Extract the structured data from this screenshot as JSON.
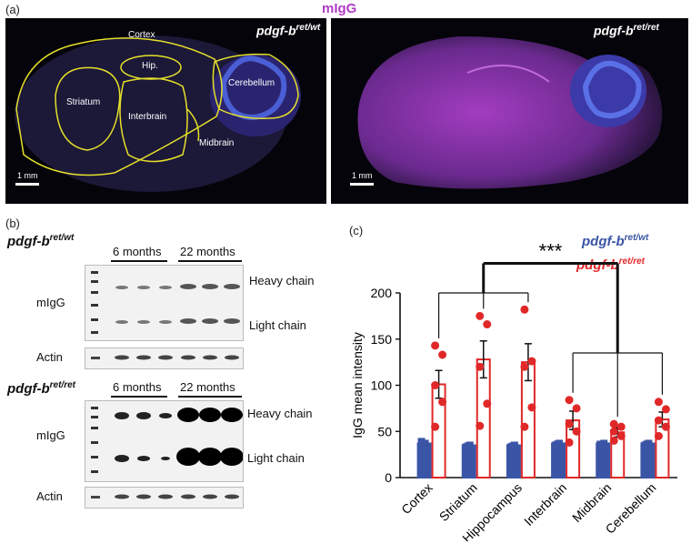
{
  "panels": {
    "a": "(a)",
    "b": "(b)",
    "c": "(c)"
  },
  "top_title": "mIgG",
  "micro_left": {
    "genotype_base": "pdgf-b",
    "genotype_sup": "ret/wt",
    "regions": [
      "Cortex",
      "Hip.",
      "Striatum",
      "Cerebellum",
      "Interbrain",
      "Midbrain"
    ],
    "scale": "1 mm"
  },
  "micro_right": {
    "genotype_base": "pdgf-b",
    "genotype_sup": "ret/ret",
    "scale": "1 mm"
  },
  "blots": [
    {
      "genotype_base": "pdgf-b",
      "genotype_sup": "ret/wt",
      "age1": "6 months",
      "age2": "22 months",
      "antibody": "mIgG",
      "heavy": "Heavy chain",
      "light": "Light chain",
      "actin": "Actin"
    },
    {
      "genotype_base": "pdgf-b",
      "genotype_sup": "ret/ret",
      "age1": "6 months",
      "age2": "22 months",
      "antibody": "mIgG",
      "heavy": "Heavy chain",
      "light": "Light chain",
      "actin": "Actin"
    }
  ],
  "chart_data": {
    "type": "bar",
    "categories": [
      "Cortex",
      "Striatum",
      "Hippocampus",
      "Interbrain",
      "Midbrain",
      "Cerebellum"
    ],
    "ylabel": "IgG mean intensity",
    "ylim": [
      0,
      200
    ],
    "yticks": [
      0,
      50,
      100,
      150,
      200
    ],
    "significance": "***",
    "series": [
      {
        "name_base": "pdgf-b",
        "name_sup": "ret/wt",
        "color": "#3a55a6",
        "values": [
          37,
          35,
          35,
          37,
          37,
          37
        ],
        "err": [
          2,
          1,
          1,
          1,
          1,
          1
        ],
        "points": [
          [
            34,
            36,
            38,
            40,
            37
          ],
          [
            34,
            35,
            36,
            34,
            35
          ],
          [
            34,
            35,
            36,
            34,
            35
          ],
          [
            35,
            37,
            38,
            36,
            37
          ],
          [
            35,
            36,
            38,
            37,
            36
          ],
          [
            35,
            37,
            38,
            36,
            37
          ]
        ]
      },
      {
        "name_base": "pdgf-b",
        "name_sup": "ret/ret",
        "color": "#e02828",
        "values": [
          101,
          128,
          125,
          62,
          49,
          63
        ],
        "err": [
          15,
          20,
          20,
          10,
          5,
          8
        ],
        "points": [
          [
            143,
            133,
            100,
            82,
            55
          ],
          [
            175,
            166,
            120,
            80,
            56
          ],
          [
            182,
            126,
            120,
            76,
            55
          ],
          [
            84,
            75,
            58,
            50,
            38
          ],
          [
            58,
            55,
            50,
            45,
            40
          ],
          [
            82,
            74,
            62,
            55,
            45
          ]
        ]
      }
    ]
  }
}
